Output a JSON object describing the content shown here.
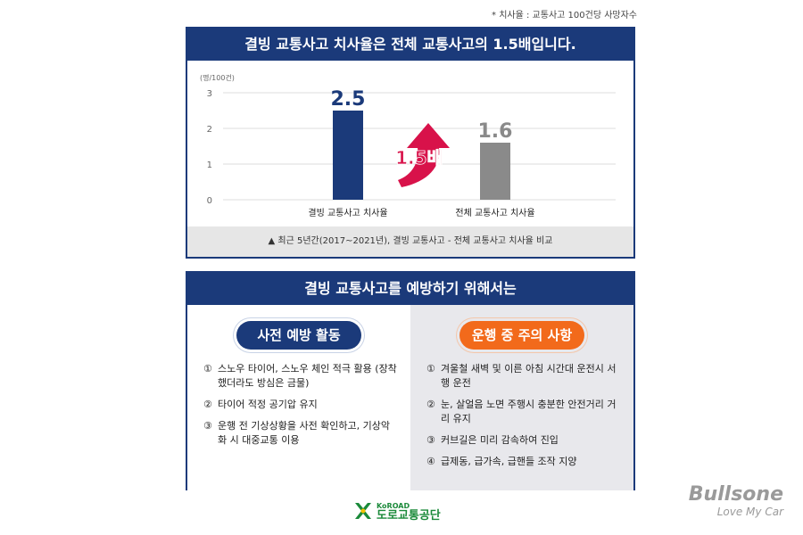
{
  "footnote": "* 치사율 : 교통사고 100건당 사망자수",
  "panel1": {
    "title": "결빙 교통사고 치사율은 전체 교통사고의 1.5배입니다.",
    "caption": "▲ 최근 5년간(2017~2021년), 결빙 교통사고 - 전체 교통사고 치사율 비교",
    "ratio_label": "1.5배"
  },
  "chart_data": {
    "type": "bar",
    "categories": [
      "결빙 교통사고 치사율",
      "전체 교통사고 치사율"
    ],
    "values": [
      2.5,
      1.6
    ],
    "value_labels": [
      "2.5",
      "1.6"
    ],
    "colors": [
      "#1b3a7a",
      "#8a8a8a"
    ],
    "ylabel": "(명/100건)",
    "ylim": [
      0,
      3
    ],
    "yticks": [
      "0",
      "1",
      "2",
      "3"
    ],
    "grid": true,
    "legend": "none"
  },
  "panel2": {
    "title": "결빙 교통사고를 예방하기 위해서는",
    "left": {
      "heading": "사전 예방 활동",
      "items": [
        {
          "num": "①",
          "text": "스노우 타이어, 스노우 체인 적극 활용 (장착했더라도 방심은 금물)"
        },
        {
          "num": "②",
          "text": "타이어 적정 공기압 유지"
        },
        {
          "num": "③",
          "text": "운행 전 기상상황을 사전 확인하고, 기상악화 시 대중교통 이용"
        }
      ]
    },
    "right": {
      "heading": "운행 중 주의 사항",
      "items": [
        {
          "num": "①",
          "text": "겨울철 새벽 및 이른 아침 시간대 운전시 서행 운전"
        },
        {
          "num": "②",
          "text": "눈, 살얼음 노면 주행시 충분한 안전거리 거리 유지"
        },
        {
          "num": "③",
          "text": "커브길은 미리 감속하여 진입"
        },
        {
          "num": "④",
          "text": "급제동, 급가속, 급핸들 조작 지양"
        }
      ]
    }
  },
  "logo": {
    "en": "KoROAD",
    "ko": "도로교통공단"
  },
  "brand": {
    "name": "Bullsone",
    "tagline": "Love My Car"
  }
}
